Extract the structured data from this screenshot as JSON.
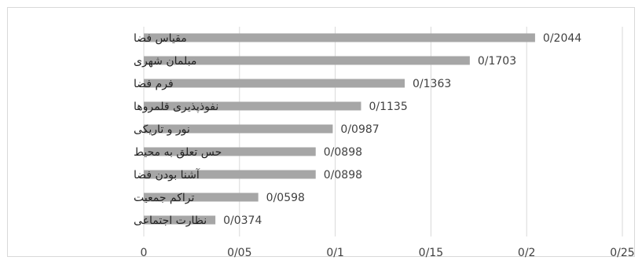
{
  "chart_data": {
    "type": "bar",
    "orientation": "horizontal",
    "categories": [
      "مقیاس فضا",
      "مبلمان شهری",
      "فرم فضا",
      "نفوذپذیری قلمروها",
      "نور و تاریکی",
      "حس تعلق به محیط",
      "آشنا بودن فضا",
      "تراکم جمعیت",
      "نظارت اجتماعی"
    ],
    "values": [
      0.2044,
      0.1703,
      0.1363,
      0.1135,
      0.0987,
      0.0898,
      0.0898,
      0.0598,
      0.0374
    ],
    "value_labels": [
      "0/2044",
      "0/1703",
      "0/1363",
      "0/1135",
      "0/0987",
      "0/0898",
      "0/0898",
      "0/0598",
      "0/0374"
    ],
    "xlim": [
      0,
      0.25
    ],
    "x_ticks": [
      0,
      0.05,
      0.1,
      0.15,
      0.2,
      0.25
    ],
    "x_tick_labels": [
      "0",
      "0/05",
      "0/1",
      "0/15",
      "0/2",
      "0/25"
    ],
    "grid": "vertical",
    "legend": "none",
    "title": "",
    "xlabel": "",
    "ylabel": "",
    "colors": {
      "bar": "#a6a6a6",
      "grid": "#d9d9d9",
      "text": "#404040"
    }
  }
}
